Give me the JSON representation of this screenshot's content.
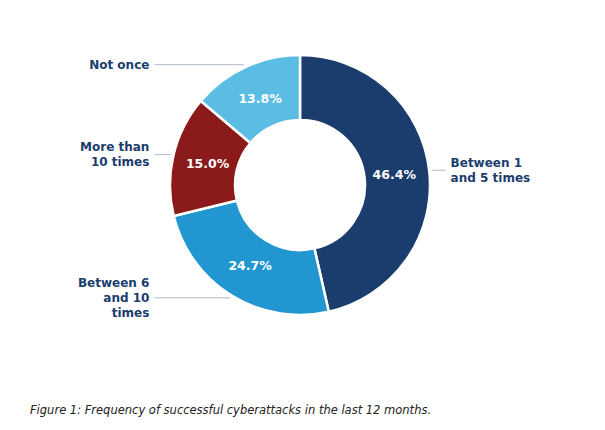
{
  "chart_data": {
    "type": "pie",
    "categories": [
      "Between 1\nand 5 times",
      "Between 6\nand 10\ntimes",
      "More than\n10 times",
      "Not once"
    ],
    "values": [
      46.4,
      24.7,
      15.0,
      13.8
    ],
    "value_labels": [
      "46.4%",
      "24.7%",
      "15.0%",
      "13.8%"
    ],
    "colors": [
      "#1b3d6e",
      "#2196d0",
      "#8b1a1a",
      "#5bbce4"
    ],
    "data_labels": true,
    "caption": "Figure 1: Frequency of successful cyberattacks in the last 12 months."
  }
}
